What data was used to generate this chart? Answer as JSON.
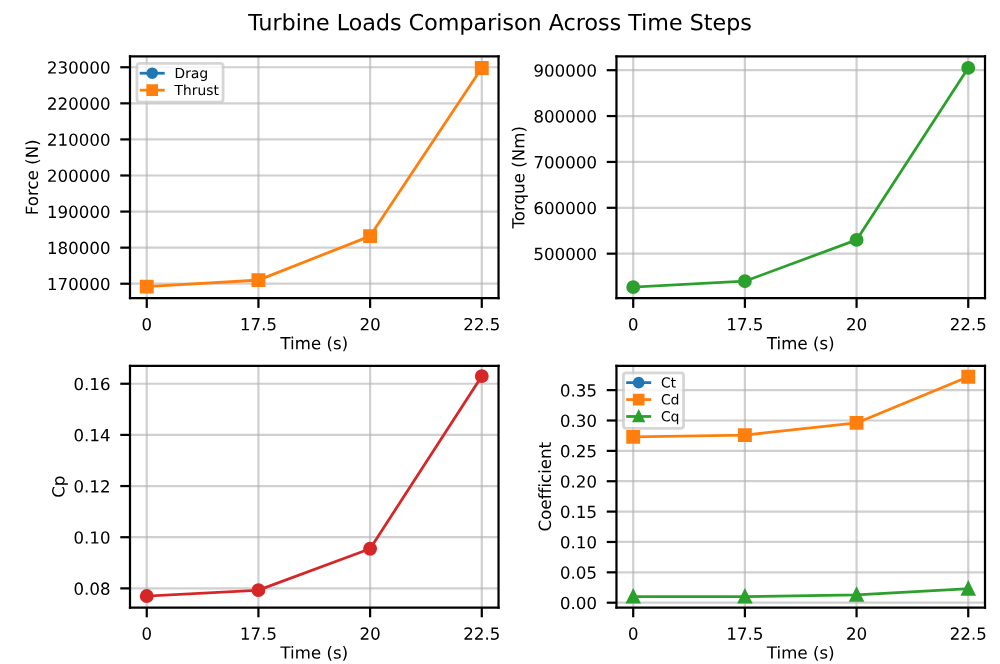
{
  "chart_data": [
    {
      "type": "line",
      "title": "Turbine Loads Comparison Across Time Steps",
      "xlabel": "Time (s)",
      "ylabel": "Force (N)",
      "categories": [
        "0",
        "17.5",
        "20",
        "22.5"
      ],
      "ylim": [
        166000,
        233000
      ],
      "yticks": [
        170000,
        180000,
        190000,
        200000,
        210000,
        220000,
        230000
      ],
      "grid": true,
      "legend": "top left",
      "series": [
        {
          "name": "Drag",
          "color": "#1f77b4",
          "marker": "circle",
          "values": [
            null,
            null,
            null,
            null
          ]
        },
        {
          "name": "Thrust",
          "color": "#ff7f0e",
          "marker": "square",
          "values": [
            169200,
            171000,
            183200,
            229800
          ]
        }
      ]
    },
    {
      "type": "line",
      "xlabel": "Time (s)",
      "ylabel": "Torque (Nm)",
      "categories": [
        "0",
        "17.5",
        "20",
        "22.5"
      ],
      "ylim": [
        403000,
        930000
      ],
      "yticks": [
        500000,
        600000,
        700000,
        800000,
        900000
      ],
      "grid": true,
      "series": [
        {
          "color": "#2ca02c",
          "marker": "circle",
          "values": [
            427000,
            440000,
            530000,
            905000
          ]
        }
      ]
    },
    {
      "type": "line",
      "xlabel": "Time (s)",
      "ylabel": "Cp",
      "categories": [
        "0",
        "17.5",
        "20",
        "22.5"
      ],
      "ylim": [
        0.0725,
        0.167
      ],
      "yticks": [
        {
          "value": 0.08,
          "label": "0.08"
        },
        {
          "value": 0.1,
          "label": "0.10"
        },
        {
          "value": 0.12,
          "label": "0.12"
        },
        {
          "value": 0.14,
          "label": "0.14"
        },
        {
          "value": 0.16,
          "label": "0.16"
        }
      ],
      "grid": true,
      "series": [
        {
          "color": "#d62728",
          "marker": "circle",
          "values": [
            0.077,
            0.0793,
            0.0955,
            0.163
          ]
        }
      ]
    },
    {
      "type": "line",
      "xlabel": "Time (s)",
      "ylabel": "Coefficient",
      "categories": [
        "0",
        "17.5",
        "20",
        "22.5"
      ],
      "ylim": [
        -0.008,
        0.39
      ],
      "yticks": [
        {
          "value": 0,
          "label": "0.00"
        },
        {
          "value": 0.05,
          "label": "0.05"
        },
        {
          "value": 0.1,
          "label": "0.10"
        },
        {
          "value": 0.15,
          "label": "0.15"
        },
        {
          "value": 0.2,
          "label": "0.20"
        },
        {
          "value": 0.25,
          "label": "0.25"
        },
        {
          "value": 0.3,
          "label": "0.30"
        },
        {
          "value": 0.35,
          "label": "0.35"
        }
      ],
      "grid": true,
      "legend": "top left",
      "series": [
        {
          "name": "Ct",
          "color": "#1f77b4",
          "marker": "circle",
          "values": [
            null,
            null,
            null,
            null
          ]
        },
        {
          "name": "Cd",
          "color": "#ff7f0e",
          "marker": "square",
          "values": [
            0.273,
            0.276,
            0.296,
            0.372
          ]
        },
        {
          "name": "Cq",
          "color": "#2ca02c",
          "marker": "triangle",
          "values": [
            0.01,
            0.01,
            0.013,
            0.023
          ]
        }
      ]
    }
  ]
}
